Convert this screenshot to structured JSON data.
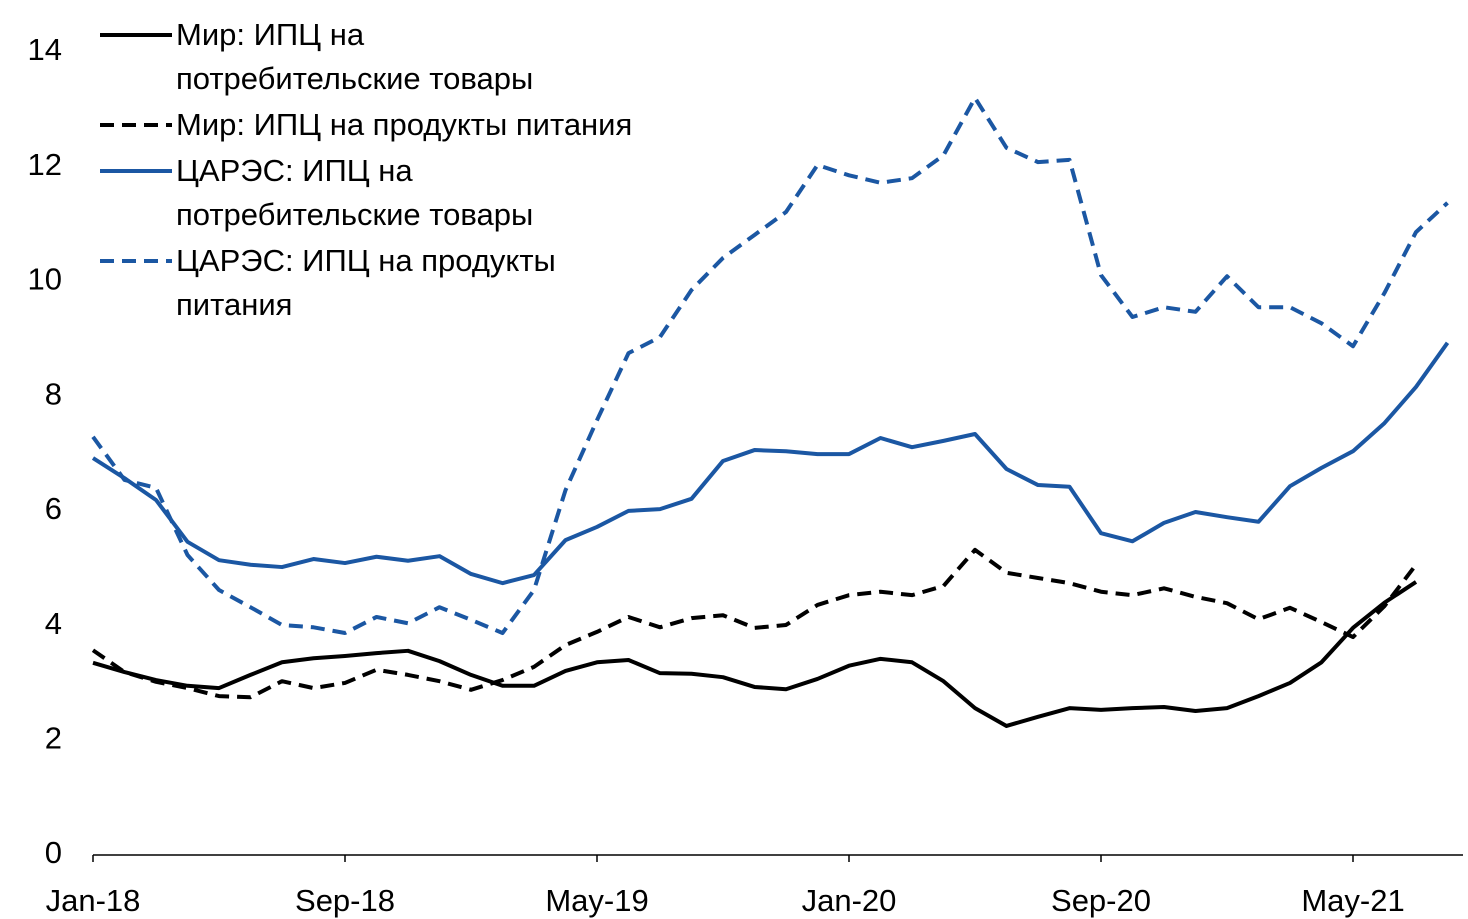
{
  "chart_data": {
    "type": "line",
    "categories": [
      "Jan-18",
      null,
      null,
      null,
      null,
      null,
      null,
      null,
      "Sep-18",
      null,
      null,
      null,
      null,
      null,
      null,
      null,
      "May-19",
      null,
      null,
      null,
      null,
      null,
      null,
      null,
      "Jan-20",
      null,
      null,
      null,
      null,
      null,
      null,
      null,
      "Sep-20",
      null,
      null,
      null,
      null,
      null,
      null,
      null,
      "May-21",
      null,
      null,
      null
    ],
    "series": [
      {
        "name": "Мир: ИПЦ на потребительские товары",
        "color": "#000000",
        "dash": false,
        "values": [
          3.35,
          3.19,
          3.05,
          2.95,
          2.91,
          3.14,
          3.36,
          3.43,
          3.47,
          3.52,
          3.56,
          3.38,
          3.14,
          2.95,
          2.95,
          3.21,
          3.36,
          3.4,
          3.17,
          3.16,
          3.1,
          2.93,
          2.89,
          3.07,
          3.3,
          3.42,
          3.36,
          3.03,
          2.56,
          2.25,
          2.41,
          2.56,
          2.53,
          2.56,
          2.58,
          2.51,
          2.56,
          2.77,
          3.0,
          3.36,
          3.96,
          4.4,
          4.76,
          null
        ]
      },
      {
        "name": "Мир: ИПЦ на продукты питания",
        "color": "#000000",
        "dash": true,
        "values": [
          3.57,
          3.19,
          3.02,
          2.91,
          2.77,
          2.75,
          3.03,
          2.91,
          3.0,
          3.23,
          3.14,
          3.03,
          2.88,
          3.05,
          3.28,
          3.66,
          3.89,
          4.15,
          3.97,
          4.13,
          4.18,
          3.96,
          4.01,
          4.36,
          4.53,
          4.59,
          4.53,
          4.69,
          5.32,
          4.92,
          4.83,
          4.74,
          4.59,
          4.53,
          4.65,
          4.5,
          4.39,
          4.11,
          4.31,
          4.06,
          3.8,
          4.34,
          5.06,
          null
        ]
      },
      {
        "name": "ЦАРЭС: ИПЦ на потребительские товары",
        "color": "#1b57a3",
        "dash": false,
        "values": [
          6.92,
          6.57,
          6.19,
          5.46,
          5.14,
          5.06,
          5.02,
          5.16,
          5.09,
          5.2,
          5.13,
          5.21,
          4.9,
          4.74,
          4.88,
          5.49,
          5.72,
          6.0,
          6.03,
          6.21,
          6.87,
          7.06,
          7.04,
          6.99,
          6.99,
          7.27,
          7.11,
          7.22,
          7.34,
          6.73,
          6.45,
          6.42,
          5.61,
          5.47,
          5.79,
          5.98,
          5.89,
          5.81,
          6.43,
          6.75,
          7.04,
          7.53,
          8.16,
          8.93
        ]
      },
      {
        "name": "ЦАРЭС: ИПЦ на продукты питания",
        "color": "#1b57a3",
        "dash": true,
        "values": [
          7.29,
          6.54,
          6.4,
          5.23,
          4.62,
          4.32,
          4.01,
          3.97,
          3.87,
          4.15,
          4.04,
          4.32,
          4.1,
          3.87,
          4.62,
          6.36,
          7.58,
          8.75,
          9.03,
          9.85,
          10.41,
          10.81,
          11.21,
          12.03,
          11.85,
          11.72,
          11.8,
          12.2,
          13.2,
          12.33,
          12.08,
          12.12,
          10.11,
          9.38,
          9.55,
          9.47,
          10.09,
          9.55,
          9.55,
          9.27,
          8.87,
          9.8,
          10.86,
          11.37
        ]
      }
    ],
    "ylim": [
      0,
      14
    ],
    "yticks": [
      0,
      2,
      4,
      6,
      8,
      10,
      12,
      14
    ],
    "grid": false,
    "legend": "upper left"
  }
}
